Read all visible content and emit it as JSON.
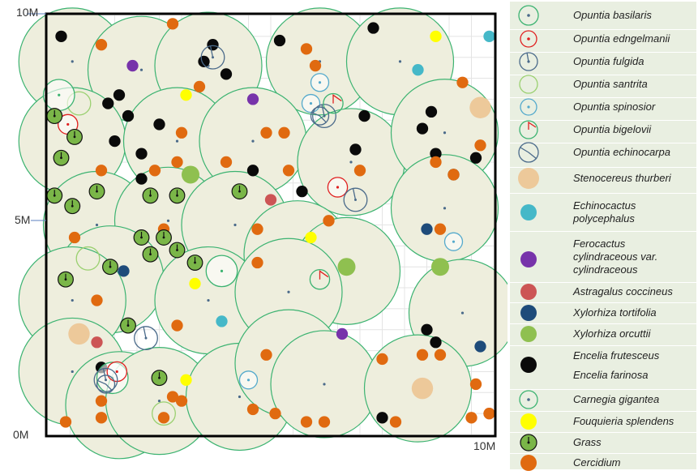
{
  "chart_data": {
    "type": "scatter",
    "title": "",
    "xlabel": "",
    "ylabel": "",
    "xlim": [
      0,
      10
    ],
    "ylim": [
      0,
      10
    ],
    "grid": true,
    "legend_position": "right",
    "x_ticks": [
      {
        "value": 10,
        "label": "10M"
      }
    ],
    "y_ticks": [
      {
        "value": 0,
        "label": "0M"
      },
      {
        "value": 5,
        "label": "5M"
      },
      {
        "value": 10,
        "label": "10M"
      }
    ],
    "series": [
      {
        "name": "Carnegia gigantea",
        "marker": "big-circle",
        "fill": "#eeeedd",
        "stroke": "#3cb371",
        "size_m": 1.2,
        "points": [
          [
            0.55,
            8.9
          ],
          [
            2.1,
            8.7
          ],
          [
            3.6,
            8.8
          ],
          [
            6.1,
            8.9
          ],
          [
            7.9,
            8.9
          ],
          [
            0.55,
            7.0
          ],
          [
            2.9,
            7.0
          ],
          [
            4.6,
            7.0
          ],
          [
            6.8,
            6.5
          ],
          [
            8.9,
            7.2
          ],
          [
            1.1,
            5.0
          ],
          [
            2.7,
            5.1
          ],
          [
            4.2,
            5.0
          ],
          [
            8.9,
            5.4
          ],
          [
            1.4,
            3.7
          ],
          [
            5.6,
            4.3
          ],
          [
            6.7,
            3.9
          ],
          [
            0.55,
            3.2
          ],
          [
            3.6,
            3.2
          ],
          [
            5.4,
            3.4
          ],
          [
            9.3,
            2.9
          ],
          [
            0.55,
            1.5
          ],
          [
            1.6,
            0.7
          ],
          [
            2.5,
            0.8
          ],
          [
            4.3,
            0.9
          ],
          [
            5.4,
            1.7
          ],
          [
            6.2,
            1.2
          ],
          [
            8.3,
            1.1
          ]
        ]
      },
      {
        "name": "Opuntia basilaris",
        "marker": "ring-dot",
        "stroke": "#3cb371",
        "size_m": 0.35,
        "points": [
          [
            0.25,
            8.1
          ],
          [
            1.45,
            1.35
          ],
          [
            3.9,
            3.9
          ]
        ]
      },
      {
        "name": "Opuntia edngelmanii",
        "marker": "ring-dot",
        "stroke": "#e02020",
        "size_m": 0.22,
        "points": [
          [
            0.45,
            7.4
          ],
          [
            1.55,
            1.5
          ],
          [
            6.5,
            5.9
          ]
        ]
      },
      {
        "name": "Opuntia fulgida",
        "marker": "ring-needle",
        "stroke": "#4a6a8a",
        "size_m": 0.26,
        "points": [
          [
            3.7,
            9.0
          ],
          [
            2.2,
            2.3
          ],
          [
            1.3,
            1.3
          ],
          [
            6.9,
            5.6
          ],
          [
            6.2,
            7.6
          ]
        ]
      },
      {
        "name": "Opuntia santrita",
        "marker": "ring",
        "stroke": "#9ad070",
        "size_m": 0.26,
        "points": [
          [
            0.7,
            7.9
          ],
          [
            0.9,
            4.2
          ],
          [
            2.6,
            0.5
          ]
        ]
      },
      {
        "name": "Opuntia spinosior",
        "marker": "ring-dot",
        "stroke": "#55aacc",
        "size_m": 0.2,
        "points": [
          [
            6.1,
            8.4
          ],
          [
            9.1,
            4.6
          ],
          [
            4.5,
            1.3
          ],
          [
            5.9,
            7.9
          ]
        ]
      },
      {
        "name": "Opuntia bigelovii",
        "marker": "ring-flag",
        "stroke": "#3cb371",
        "size_m": 0.22,
        "points": [
          [
            6.4,
            7.9
          ],
          [
            6.1,
            3.7
          ]
        ]
      },
      {
        "name": "Opuntia echinocarpa",
        "marker": "ring-wedge",
        "stroke": "#4a6a8a",
        "size_m": 0.2,
        "points": [
          [
            6.1,
            7.6
          ],
          [
            1.3,
            1.2
          ]
        ]
      },
      {
        "name": "Stenocereus thurberi",
        "marker": "disc",
        "fill": "#edc99a",
        "size_m": 0.24,
        "points": [
          [
            9.7,
            7.8
          ],
          [
            0.7,
            2.4
          ],
          [
            8.4,
            1.1
          ]
        ]
      },
      {
        "name": "Echinocactus polycephalus",
        "marker": "disc",
        "fill": "#45b8c8",
        "size_m": 0.13,
        "points": [
          [
            9.9,
            9.5
          ],
          [
            8.3,
            8.7
          ],
          [
            3.9,
            2.7
          ]
        ]
      },
      {
        "name": "Ferocactus cylindraceous var. cylindraceous",
        "marker": "disc",
        "fill": "#7733aa",
        "size_m": 0.13,
        "points": [
          [
            1.9,
            8.8
          ],
          [
            4.6,
            8.0
          ],
          [
            6.6,
            2.4
          ]
        ]
      },
      {
        "name": "Astragalus coccineus",
        "marker": "disc",
        "fill": "#cc5555",
        "size_m": 0.13,
        "points": [
          [
            5.0,
            5.6
          ],
          [
            1.1,
            2.2
          ],
          [
            9.9,
            0.5
          ]
        ]
      },
      {
        "name": "Xylorhiza tortifolia",
        "marker": "disc",
        "fill": "#1e4b7a",
        "size_m": 0.13,
        "points": [
          [
            8.5,
            4.9
          ],
          [
            1.7,
            3.9
          ],
          [
            9.7,
            2.1
          ]
        ]
      },
      {
        "name": "Xylorhiza orcuttii",
        "marker": "disc",
        "fill": "#8fc050",
        "size_m": 0.2,
        "points": [
          [
            3.2,
            6.2
          ],
          [
            6.7,
            4.0
          ],
          [
            8.8,
            4.0
          ]
        ]
      },
      {
        "name": "Encelia frutesceus",
        "marker": "disc",
        "fill": "#0a0a0a",
        "size_m": 0.13,
        "points": [
          [
            0.3,
            9.5
          ],
          [
            3.7,
            9.3
          ],
          [
            5.2,
            9.4
          ],
          [
            7.3,
            9.7
          ],
          [
            4.0,
            8.6
          ],
          [
            1.35,
            7.9
          ],
          [
            1.8,
            7.6
          ],
          [
            1.5,
            7.0
          ],
          [
            2.5,
            7.4
          ],
          [
            2.1,
            6.7
          ],
          [
            2.1,
            6.1
          ],
          [
            4.6,
            6.3
          ],
          [
            5.7,
            5.8
          ],
          [
            6.9,
            6.8
          ],
          [
            7.1,
            7.6
          ],
          [
            8.4,
            7.3
          ],
          [
            8.6,
            7.7
          ],
          [
            8.7,
            6.7
          ],
          [
            9.1,
            6.2
          ],
          [
            9.6,
            6.6
          ],
          [
            3.5,
            8.9
          ],
          [
            1.2,
            1.6
          ],
          [
            7.5,
            0.4
          ],
          [
            8.5,
            2.5
          ],
          [
            8.7,
            2.2
          ],
          [
            1.6,
            8.1
          ]
        ]
      },
      {
        "name": "Fouquieria splendens",
        "marker": "disc",
        "fill": "#ffff00",
        "size_m": 0.13,
        "points": [
          [
            8.7,
            9.5
          ],
          [
            3.1,
            8.1
          ],
          [
            5.9,
            4.7
          ],
          [
            3.3,
            3.6
          ],
          [
            3.1,
            1.3
          ]
        ]
      },
      {
        "name": "Grass",
        "marker": "grass",
        "fill": "#7ab648",
        "size_m": 0.17,
        "points": [
          [
            0.15,
            7.6
          ],
          [
            0.3,
            6.6
          ],
          [
            0.15,
            5.7
          ],
          [
            0.55,
            5.45
          ],
          [
            1.1,
            5.8
          ],
          [
            2.3,
            5.7
          ],
          [
            2.9,
            5.7
          ],
          [
            2.1,
            4.7
          ],
          [
            2.6,
            4.7
          ],
          [
            1.4,
            4.0
          ],
          [
            2.3,
            4.3
          ],
          [
            2.9,
            4.4
          ],
          [
            3.3,
            4.1
          ],
          [
            4.3,
            5.8
          ],
          [
            0.4,
            3.7
          ],
          [
            1.8,
            2.6
          ],
          [
            0.6,
            7.1
          ],
          [
            2.5,
            1.35
          ]
        ]
      },
      {
        "name": "Cercidium",
        "marker": "disc",
        "fill": "#e06a10",
        "size_m": 0.13,
        "points": [
          [
            1.2,
            9.3
          ],
          [
            2.8,
            9.8
          ],
          [
            3.4,
            8.3
          ],
          [
            6.0,
            8.8
          ],
          [
            5.8,
            9.2
          ],
          [
            3.0,
            7.2
          ],
          [
            4.9,
            7.2
          ],
          [
            5.3,
            7.2
          ],
          [
            1.2,
            6.3
          ],
          [
            2.4,
            6.3
          ],
          [
            2.9,
            6.5
          ],
          [
            4.0,
            6.5
          ],
          [
            5.4,
            6.3
          ],
          [
            7.0,
            6.3
          ],
          [
            8.7,
            6.5
          ],
          [
            9.1,
            6.2
          ],
          [
            9.7,
            6.9
          ],
          [
            0.6,
            4.7
          ],
          [
            2.6,
            4.9
          ],
          [
            4.7,
            4.9
          ],
          [
            6.3,
            5.1
          ],
          [
            8.8,
            4.9
          ],
          [
            1.1,
            3.2
          ],
          [
            2.9,
            2.6
          ],
          [
            4.7,
            4.1
          ],
          [
            0.4,
            0.3
          ],
          [
            1.2,
            0.8
          ],
          [
            1.2,
            0.4
          ],
          [
            3.0,
            0.8
          ],
          [
            4.6,
            0.6
          ],
          [
            5.1,
            0.5
          ],
          [
            5.8,
            0.3
          ],
          [
            6.2,
            0.3
          ],
          [
            7.8,
            0.3
          ],
          [
            8.4,
            1.9
          ],
          [
            8.8,
            1.9
          ],
          [
            9.5,
            0.4
          ],
          [
            9.9,
            0.5
          ],
          [
            2.8,
            0.9
          ],
          [
            2.6,
            0.4
          ],
          [
            4.9,
            1.9
          ],
          [
            7.5,
            1.8
          ],
          [
            9.6,
            1.2
          ],
          [
            9.3,
            8.4
          ]
        ]
      }
    ]
  },
  "legend": {
    "items": [
      {
        "label": "Opuntia basilaris",
        "icon": "ring-dot-green"
      },
      {
        "label": "Opuntia edngelmanii",
        "icon": "ring-dot-red"
      },
      {
        "label": "Opuntia fulgida",
        "icon": "ring-needle-slate"
      },
      {
        "label": "Opuntia santrita",
        "icon": "ring-lightgreen"
      },
      {
        "label": "Opuntia spinosior",
        "icon": "ring-dot-cyan"
      },
      {
        "label": "Opuntia bigelovii",
        "icon": "ring-flag-green"
      },
      {
        "label": "Opuntia echinocarpa",
        "icon": "ring-wedge-slate"
      },
      {
        "label": "Stenocereus thurberi",
        "icon": "disc-tan"
      },
      {
        "label": "Echinocactus polycephalus",
        "icon": "disc-cyan"
      },
      {
        "label": "Ferocactus cylindraceous var. cylindraceous",
        "icon": "disc-purple"
      },
      {
        "label": "Astragalus coccineus",
        "icon": "disc-red"
      },
      {
        "label": "Xylorhiza tortifolia",
        "icon": "disc-navy"
      },
      {
        "label": "Xylorhiza orcuttii",
        "icon": "disc-lightgreen"
      },
      {
        "label": "Encelia frutesceus",
        "icon": "none"
      },
      {
        "label": "Encelia farinosa",
        "icon": "disc-black"
      },
      {
        "label": "Carnegia gigantea",
        "icon": "ring-dot-green"
      },
      {
        "label": "Fouquieria splendens",
        "icon": "disc-yellow"
      },
      {
        "label": "Grass",
        "icon": "grass"
      },
      {
        "label": "Cercidium",
        "icon": "disc-orange"
      }
    ]
  },
  "colors": {
    "legend_bg": "#e9efe1",
    "grid": "#e4e4e4",
    "frame": "#000000"
  }
}
